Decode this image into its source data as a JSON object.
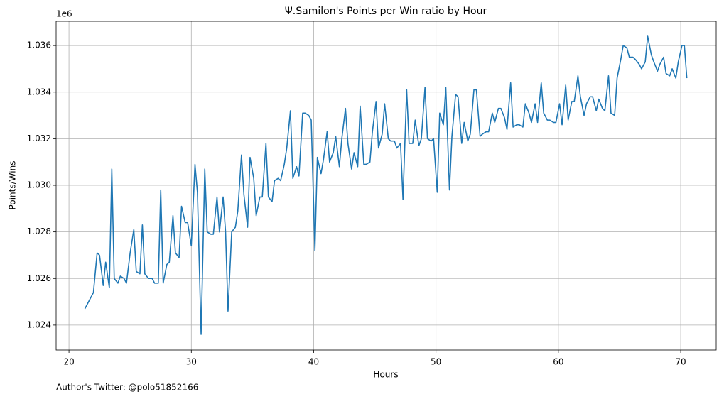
{
  "chart_data": {
    "type": "line",
    "title": "Ψ.Samilon's Points per Win ratio by Hour",
    "xlabel": "Hours",
    "ylabel": "Points/Wins",
    "offset_label": "1e6",
    "footnote": "Author's Twitter: @polo51852166",
    "color": "#1f77b4",
    "grid": true,
    "xlim": [
      18.95,
      72.9
    ],
    "ylim": [
      1.02293,
      1.03704
    ],
    "xticks": [
      20,
      30,
      40,
      50,
      60,
      70
    ],
    "yticks": [
      1.024,
      1.026,
      1.028,
      {
        "value": 1.03,
        "label": "1.030"
      },
      1.032,
      1.034,
      1.036
    ],
    "x": [
      21.3,
      21.5,
      22.0,
      22.3,
      22.5,
      22.8,
      23.0,
      23.3,
      23.5,
      23.7,
      24.0,
      24.2,
      24.5,
      24.7,
      25.0,
      25.3,
      25.5,
      25.8,
      26.0,
      26.2,
      26.5,
      26.8,
      27.0,
      27.3,
      27.5,
      27.7,
      28.0,
      28.2,
      28.5,
      28.7,
      29.0,
      29.2,
      29.5,
      29.7,
      30.0,
      30.3,
      30.5,
      30.8,
      31.1,
      31.3,
      31.6,
      31.8,
      32.1,
      32.3,
      32.6,
      32.8,
      33.0,
      33.3,
      33.6,
      33.8,
      34.1,
      34.3,
      34.6,
      34.8,
      35.1,
      35.3,
      35.6,
      35.8,
      36.1,
      36.3,
      36.6,
      36.8,
      37.1,
      37.3,
      37.6,
      37.8,
      38.1,
      38.3,
      38.6,
      38.8,
      39.1,
      39.3,
      39.6,
      39.8,
      40.1,
      40.3,
      40.6,
      40.8,
      41.1,
      41.3,
      41.6,
      41.8,
      42.1,
      42.3,
      42.6,
      42.8,
      43.1,
      43.3,
      43.6,
      43.8,
      44.1,
      44.3,
      44.6,
      44.8,
      45.1,
      45.3,
      45.6,
      45.8,
      46.1,
      46.3,
      46.6,
      46.8,
      47.1,
      47.3,
      47.6,
      47.8,
      48.1,
      48.3,
      48.6,
      48.8,
      49.1,
      49.3,
      49.6,
      49.8,
      50.1,
      50.3,
      50.6,
      50.8,
      51.1,
      51.3,
      51.6,
      51.8,
      52.1,
      52.3,
      52.6,
      52.8,
      53.1,
      53.3,
      53.6,
      53.8,
      54.1,
      54.3,
      54.6,
      54.8,
      55.1,
      55.3,
      55.6,
      55.8,
      56.1,
      56.3,
      56.6,
      56.8,
      57.1,
      57.3,
      57.6,
      57.8,
      58.1,
      58.3,
      58.6,
      58.8,
      59.1,
      59.3,
      59.6,
      59.8,
      60.1,
      60.3,
      60.6,
      60.8,
      61.1,
      61.3,
      61.6,
      61.8,
      62.1,
      62.3,
      62.6,
      62.8,
      63.1,
      63.3,
      63.6,
      63.8,
      64.1,
      64.3,
      64.6,
      64.8,
      65.1,
      65.3,
      65.6,
      65.8,
      66.1,
      66.3,
      66.6,
      66.8,
      67.1,
      67.3,
      67.6,
      67.8,
      68.1,
      68.3,
      68.6,
      68.8,
      69.1,
      69.3,
      69.6,
      69.8,
      70.1,
      70.3,
      70.5
    ],
    "values": [
      1.0247,
      1.0249,
      1.0254,
      1.0271,
      1.027,
      1.0257,
      1.0267,
      1.0256,
      1.0307,
      1.026,
      1.0258,
      1.0261,
      1.026,
      1.0258,
      1.0271,
      1.0281,
      1.0263,
      1.0262,
      1.0283,
      1.0262,
      1.026,
      1.026,
      1.0258,
      1.0258,
      1.0298,
      1.0258,
      1.0266,
      1.0267,
      1.0287,
      1.0271,
      1.0269,
      1.0291,
      1.0284,
      1.0284,
      1.0274,
      1.0309,
      1.0297,
      1.0236,
      1.0307,
      1.028,
      1.0279,
      1.0279,
      1.0295,
      1.028,
      1.0295,
      1.028,
      1.0246,
      1.028,
      1.0282,
      1.0289,
      1.0313,
      1.0296,
      1.0282,
      1.0312,
      1.0303,
      1.0287,
      1.0295,
      1.0295,
      1.0318,
      1.0295,
      1.0293,
      1.0302,
      1.0303,
      1.0302,
      1.0309,
      1.0316,
      1.0332,
      1.0303,
      1.0308,
      1.0304,
      1.0331,
      1.0331,
      1.033,
      1.0328,
      1.0272,
      1.0312,
      1.0305,
      1.0311,
      1.0323,
      1.031,
      1.0314,
      1.0321,
      1.0308,
      1.032,
      1.0333,
      1.0318,
      1.0307,
      1.0314,
      1.0308,
      1.0334,
      1.0309,
      1.0309,
      1.031,
      1.0323,
      1.0336,
      1.0316,
      1.0322,
      1.0335,
      1.032,
      1.0319,
      1.0319,
      1.0316,
      1.0318,
      1.0294,
      1.0341,
      1.0318,
      1.0318,
      1.0328,
      1.0317,
      1.032,
      1.0342,
      1.032,
      1.0319,
      1.032,
      1.0297,
      1.0331,
      1.0326,
      1.0342,
      1.0298,
      1.0321,
      1.0339,
      1.0338,
      1.0318,
      1.0327,
      1.0319,
      1.0322,
      1.0341,
      1.0341,
      1.0321,
      1.0322,
      1.0323,
      1.0323,
      1.0331,
      1.0327,
      1.0333,
      1.0333,
      1.0329,
      1.0324,
      1.0344,
      1.0325,
      1.0326,
      1.0326,
      1.0325,
      1.0335,
      1.0331,
      1.0327,
      1.0335,
      1.0327,
      1.0344,
      1.0331,
      1.0328,
      1.0328,
      1.0327,
      1.0327,
      1.0335,
      1.0326,
      1.0343,
      1.0328,
      1.0336,
      1.0336,
      1.0347,
      1.0338,
      1.033,
      1.0335,
      1.0338,
      1.0338,
      1.0332,
      1.0337,
      1.0333,
      1.0332,
      1.0347,
      1.0331,
      1.033,
      1.0346,
      1.0354,
      1.036,
      1.0359,
      1.0355,
      1.0355,
      1.0354,
      1.0352,
      1.035,
      1.0353,
      1.0364,
      1.0356,
      1.0353,
      1.0349,
      1.0352,
      1.0355,
      1.0348,
      1.0347,
      1.035,
      1.0346,
      1.0353,
      1.036,
      1.036,
      1.0346
    ]
  }
}
